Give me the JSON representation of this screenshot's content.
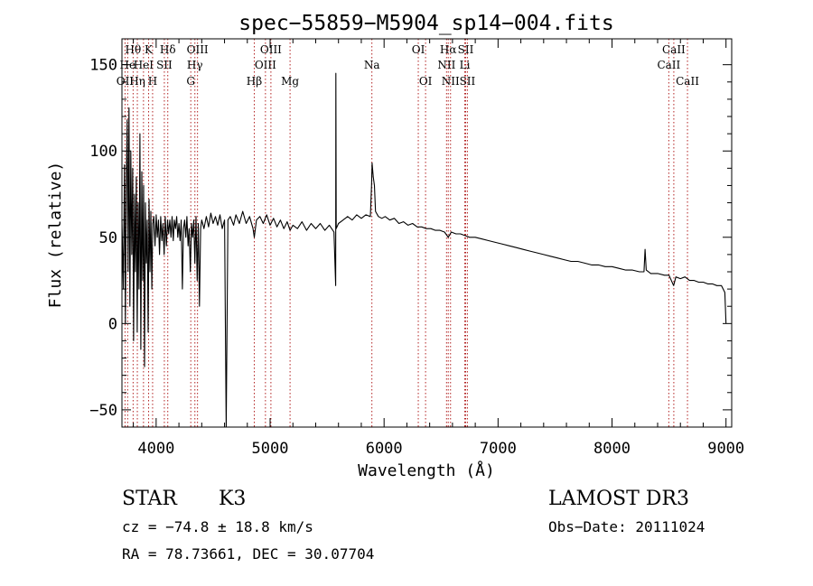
{
  "chart_data": {
    "type": "line",
    "title": "spec−55859−M5904_sp14−004.fits",
    "xlabel": "Wavelength (Å)",
    "ylabel": "Flux (relative)",
    "xlim": [
      3700,
      9050
    ],
    "ylim": [
      -60,
      165
    ],
    "xticks": [
      4000,
      5000,
      6000,
      7000,
      8000,
      9000
    ],
    "yticks": [
      -50,
      0,
      50,
      100,
      150
    ],
    "ytick_labels": [
      "−50",
      "0",
      "50",
      "100",
      "150"
    ],
    "series": [
      {
        "name": "spectrum",
        "points": [
          [
            3700,
            60
          ],
          [
            3712,
            20
          ],
          [
            3722,
            92
          ],
          [
            3730,
            0
          ],
          [
            3738,
            80
          ],
          [
            3746,
            118
          ],
          [
            3754,
            30
          ],
          [
            3762,
            125
          ],
          [
            3770,
            10
          ],
          [
            3778,
            100
          ],
          [
            3786,
            40
          ],
          [
            3794,
            90
          ],
          [
            3802,
            -10
          ],
          [
            3810,
            75
          ],
          [
            3818,
            30
          ],
          [
            3826,
            85
          ],
          [
            3834,
            -5
          ],
          [
            3842,
            70
          ],
          [
            3850,
            20
          ],
          [
            3858,
            110
          ],
          [
            3866,
            -15
          ],
          [
            3874,
            88
          ],
          [
            3882,
            25
          ],
          [
            3890,
            80
          ],
          [
            3898,
            -25
          ],
          [
            3906,
            70
          ],
          [
            3914,
            35
          ],
          [
            3922,
            60
          ],
          [
            3930,
            -5
          ],
          [
            3938,
            72
          ],
          [
            3946,
            30
          ],
          [
            3954,
            65
          ],
          [
            3962,
            20
          ],
          [
            3970,
            58
          ],
          [
            3980,
            62
          ],
          [
            3990,
            45
          ],
          [
            4000,
            63
          ],
          [
            4010,
            50
          ],
          [
            4020,
            60
          ],
          [
            4030,
            40
          ],
          [
            4040,
            62
          ],
          [
            4050,
            48
          ],
          [
            4060,
            58
          ],
          [
            4070,
            40
          ],
          [
            4080,
            62
          ],
          [
            4090,
            45
          ],
          [
            4100,
            60
          ],
          [
            4110,
            52
          ],
          [
            4120,
            60
          ],
          [
            4130,
            50
          ],
          [
            4140,
            62
          ],
          [
            4150,
            48
          ],
          [
            4160,
            60
          ],
          [
            4170,
            55
          ],
          [
            4180,
            62
          ],
          [
            4190,
            50
          ],
          [
            4200,
            58
          ],
          [
            4210,
            48
          ],
          [
            4220,
            60
          ],
          [
            4230,
            20
          ],
          [
            4240,
            55
          ],
          [
            4250,
            60
          ],
          [
            4260,
            50
          ],
          [
            4270,
            62
          ],
          [
            4280,
            45
          ],
          [
            4290,
            55
          ],
          [
            4300,
            30
          ],
          [
            4310,
            58
          ],
          [
            4320,
            50
          ],
          [
            4330,
            60
          ],
          [
            4340,
            35
          ],
          [
            4350,
            62
          ],
          [
            4360,
            25
          ],
          [
            4370,
            58
          ],
          [
            4380,
            10
          ],
          [
            4390,
            55
          ],
          [
            4400,
            60
          ],
          [
            4420,
            55
          ],
          [
            4440,
            62
          ],
          [
            4460,
            56
          ],
          [
            4480,
            64
          ],
          [
            4500,
            58
          ],
          [
            4520,
            62
          ],
          [
            4540,
            57
          ],
          [
            4560,
            63
          ],
          [
            4580,
            55
          ],
          [
            4600,
            60
          ],
          [
            4615,
            -60
          ],
          [
            4630,
            60
          ],
          [
            4650,
            62
          ],
          [
            4680,
            57
          ],
          [
            4700,
            63
          ],
          [
            4730,
            58
          ],
          [
            4760,
            65
          ],
          [
            4790,
            58
          ],
          [
            4820,
            62
          ],
          [
            4850,
            55
          ],
          [
            4861,
            50
          ],
          [
            4880,
            60
          ],
          [
            4910,
            62
          ],
          [
            4940,
            58
          ],
          [
            4970,
            63
          ],
          [
            5000,
            57
          ],
          [
            5030,
            61
          ],
          [
            5060,
            56
          ],
          [
            5090,
            60
          ],
          [
            5120,
            55
          ],
          [
            5150,
            59
          ],
          [
            5175,
            54
          ],
          [
            5200,
            57
          ],
          [
            5240,
            55
          ],
          [
            5280,
            59
          ],
          [
            5320,
            54
          ],
          [
            5360,
            58
          ],
          [
            5400,
            55
          ],
          [
            5440,
            58
          ],
          [
            5480,
            54
          ],
          [
            5520,
            57
          ],
          [
            5560,
            53
          ],
          [
            5575,
            22
          ],
          [
            5577,
            145
          ],
          [
            5580,
            55
          ],
          [
            5600,
            58
          ],
          [
            5640,
            60
          ],
          [
            5680,
            62
          ],
          [
            5720,
            60
          ],
          [
            5760,
            63
          ],
          [
            5800,
            61
          ],
          [
            5840,
            63
          ],
          [
            5880,
            62
          ],
          [
            5890,
            80
          ],
          [
            5895,
            93
          ],
          [
            5905,
            85
          ],
          [
            5915,
            80
          ],
          [
            5925,
            65
          ],
          [
            5950,
            62
          ],
          [
            5980,
            61
          ],
          [
            6010,
            62
          ],
          [
            6050,
            60
          ],
          [
            6090,
            61
          ],
          [
            6130,
            58
          ],
          [
            6170,
            59
          ],
          [
            6210,
            57
          ],
          [
            6250,
            58
          ],
          [
            6290,
            56
          ],
          [
            6330,
            56
          ],
          [
            6370,
            55
          ],
          [
            6410,
            55
          ],
          [
            6450,
            54
          ],
          [
            6490,
            54
          ],
          [
            6530,
            53
          ],
          [
            6563,
            50
          ],
          [
            6590,
            53
          ],
          [
            6630,
            52
          ],
          [
            6670,
            52
          ],
          [
            6710,
            51
          ],
          [
            6750,
            50
          ],
          [
            6800,
            50
          ],
          [
            6860,
            49
          ],
          [
            6920,
            48
          ],
          [
            6980,
            47
          ],
          [
            7040,
            46
          ],
          [
            7100,
            45
          ],
          [
            7160,
            44
          ],
          [
            7220,
            43
          ],
          [
            7280,
            42
          ],
          [
            7340,
            41
          ],
          [
            7400,
            40
          ],
          [
            7460,
            39
          ],
          [
            7520,
            38
          ],
          [
            7580,
            37
          ],
          [
            7640,
            36
          ],
          [
            7700,
            36
          ],
          [
            7760,
            35
          ],
          [
            7820,
            34
          ],
          [
            7880,
            34
          ],
          [
            7940,
            33
          ],
          [
            8000,
            33
          ],
          [
            8060,
            32
          ],
          [
            8120,
            31
          ],
          [
            8180,
            31
          ],
          [
            8240,
            30
          ],
          [
            8280,
            30
          ],
          [
            8290,
            43
          ],
          [
            8300,
            31
          ],
          [
            8340,
            29
          ],
          [
            8400,
            29
          ],
          [
            8460,
            28
          ],
          [
            8500,
            28
          ],
          [
            8540,
            22
          ],
          [
            8560,
            27
          ],
          [
            8600,
            26
          ],
          [
            8640,
            27
          ],
          [
            8680,
            25
          ],
          [
            8720,
            25
          ],
          [
            8760,
            24
          ],
          [
            8800,
            24
          ],
          [
            8840,
            23
          ],
          [
            8880,
            23
          ],
          [
            8920,
            22
          ],
          [
            8960,
            22
          ],
          [
            8990,
            18
          ],
          [
            9000,
            0
          ]
        ]
      }
    ],
    "lines": [
      {
        "label": "Hθ",
        "wave": 3798,
        "row": 0
      },
      {
        "label": "OII",
        "wave": 3727,
        "row": 2
      },
      {
        "label": "He",
        "wave": 3750,
        "row": 1
      },
      {
        "label": "Hη",
        "wave": 3835,
        "row": 2
      },
      {
        "label": "HeI",
        "wave": 3889,
        "row": 1
      },
      {
        "label": "K",
        "wave": 3934,
        "row": 0
      },
      {
        "label": "SII",
        "wave": 4072,
        "row": 1
      },
      {
        "label": "H",
        "wave": 3969,
        "row": 2
      },
      {
        "label": "Hδ",
        "wave": 4102,
        "row": 0
      },
      {
        "label": "OIII",
        "wave": 4363,
        "row": 0
      },
      {
        "label": "Hγ",
        "wave": 4340,
        "row": 1
      },
      {
        "label": "G",
        "wave": 4304,
        "row": 2
      },
      {
        "label": "Hβ",
        "wave": 4861,
        "row": 2
      },
      {
        "label": "OIII",
        "wave": 5007,
        "row": 0
      },
      {
        "label": "OIII",
        "wave": 4959,
        "row": 1
      },
      {
        "label": "Mg",
        "wave": 5175,
        "row": 2
      },
      {
        "label": "Na",
        "wave": 5893,
        "row": 1
      },
      {
        "label": "OI",
        "wave": 6300,
        "row": 0
      },
      {
        "label": "OI",
        "wave": 6364,
        "row": 2
      },
      {
        "label": "Hα",
        "wave": 6563,
        "row": 0
      },
      {
        "label": "SII",
        "wave": 6716,
        "row": 0
      },
      {
        "label": "NII",
        "wave": 6548,
        "row": 1
      },
      {
        "label": "Li",
        "wave": 6708,
        "row": 1
      },
      {
        "label": "NII",
        "wave": 6583,
        "row": 2
      },
      {
        "label": "SII",
        "wave": 6731,
        "row": 2
      },
      {
        "label": "CaII",
        "wave": 8542,
        "row": 0
      },
      {
        "label": "CaII",
        "wave": 8498,
        "row": 1
      },
      {
        "label": "CaII",
        "wave": 8662,
        "row": 2
      }
    ]
  },
  "info": {
    "class_label": "STAR",
    "subclass": "K3",
    "survey": "LAMOST DR3",
    "cz": "cz = −74.8 ± 18.8 km/s",
    "obs_date": "Obs−Date: 20111024",
    "coords": "RA =  78.73661, DEC =  30.07704"
  },
  "colors": {
    "line_marker": "#b22222",
    "spectrum": "#000000"
  }
}
